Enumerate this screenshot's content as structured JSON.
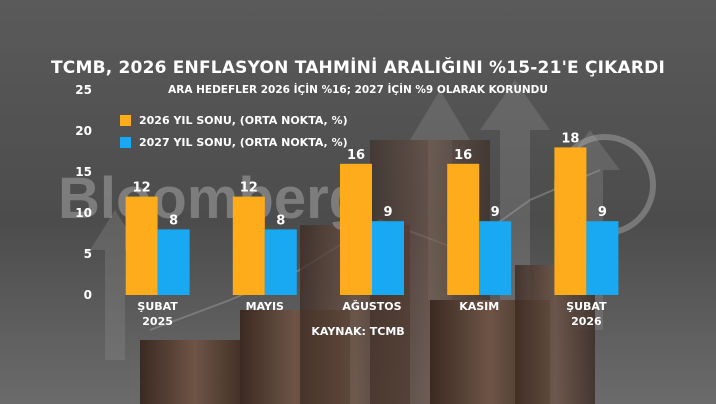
{
  "header": {
    "title": "TCMB, 2026 ENFLASYON TAHMİNİ ARALIĞINI %15-21'E ÇIKARDI",
    "subtitle": "ARA HEDEFLER 2026 İÇİN %16; 2027 İÇİN %9 OLARAK KORUNDU"
  },
  "source": "KAYNAK: TCMB",
  "watermark": "Bloomberg",
  "colors": {
    "series1": "#ffac1c",
    "series2": "#19a8f2",
    "text": "#ffffff"
  },
  "chart_data": {
    "type": "bar",
    "title": "TCMB, 2026 ENFLASYON TAHMİNİ ARALIĞINI %15-21'E ÇIKARDI",
    "subtitle": "ARA HEDEFLER 2026 İÇİN %16; 2027 İÇİN %9 OLARAK KORUNDU",
    "categories": [
      [
        "ŞUBAT",
        "2025"
      ],
      [
        "MAYIS"
      ],
      [
        "AĞUSTOS"
      ],
      [
        "KASIM"
      ],
      [
        "ŞUBAT",
        "2026"
      ]
    ],
    "series": [
      {
        "name": "2026 YIL SONU, (ORTA NOKTA, %)",
        "values": [
          12,
          12,
          16,
          16,
          18
        ],
        "color": "#ffac1c"
      },
      {
        "name": "2027 YIL SONU, (ORTA NOKTA, %)",
        "values": [
          8,
          8,
          9,
          9,
          9
        ],
        "color": "#19a8f2"
      }
    ],
    "ylim": [
      0,
      25
    ],
    "yticks": [
      0,
      5,
      10,
      15,
      20,
      25
    ],
    "grid": false,
    "legend_position": "top-left",
    "data_labels": true
  }
}
